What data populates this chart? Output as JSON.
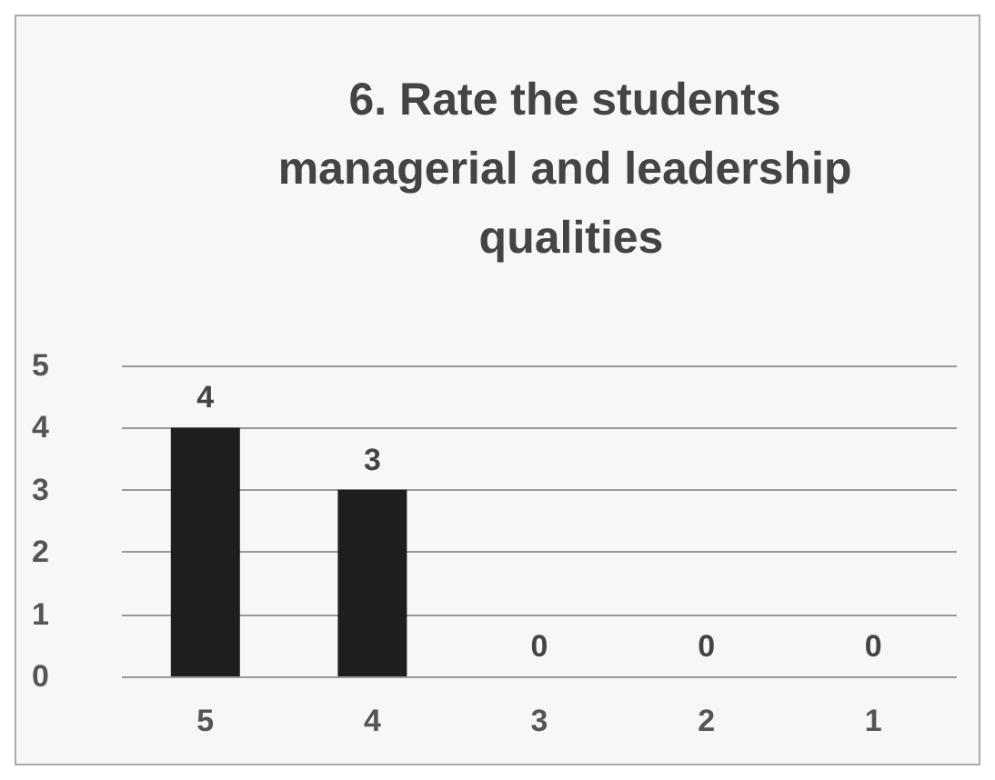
{
  "chart_data": {
    "type": "bar",
    "title": "6. Rate the students managerial and leadership qualities",
    "categories": [
      "5",
      "4",
      "3",
      "2",
      "1"
    ],
    "values": [
      4,
      3,
      0,
      0,
      0
    ],
    "color": "#1e1e1e",
    "ylim": [
      0,
      5
    ],
    "yticks": [
      0,
      1,
      2,
      3,
      4,
      5
    ],
    "grid": "y",
    "data_labels": true
  }
}
